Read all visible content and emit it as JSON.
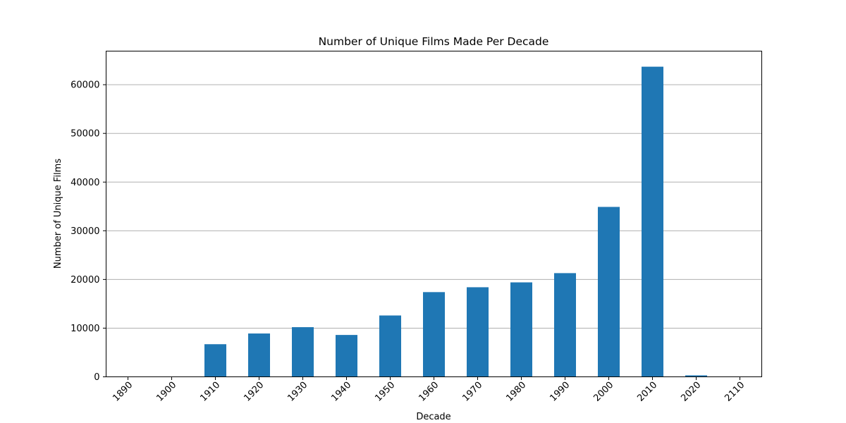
{
  "chart_data": {
    "type": "bar",
    "title": "Number of Unique Films Made Per Decade",
    "xlabel": "Decade",
    "ylabel": "Number of Unique Films",
    "categories": [
      "1890",
      "1900",
      "1910",
      "1920",
      "1930",
      "1940",
      "1950",
      "1960",
      "1970",
      "1980",
      "1990",
      "2000",
      "2010",
      "2020",
      "2110"
    ],
    "values": [
      10,
      60,
      6700,
      8900,
      10200,
      8600,
      12600,
      17400,
      18400,
      19400,
      21300,
      34900,
      63700,
      300,
      5
    ],
    "ylim": [
      0,
      66900
    ],
    "yticks": [
      0,
      10000,
      20000,
      30000,
      40000,
      50000,
      60000
    ],
    "grid": "y",
    "bar_color": "#1f77b4",
    "legend": "none"
  }
}
